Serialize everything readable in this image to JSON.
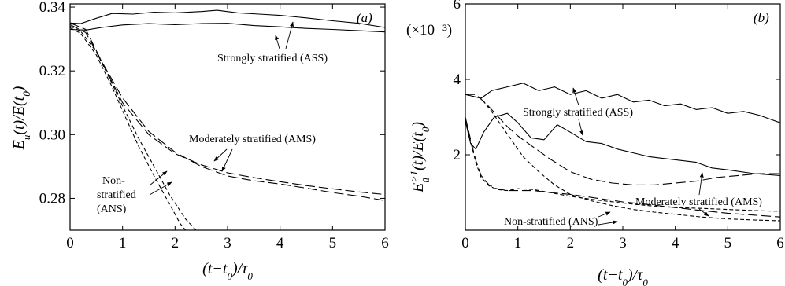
{
  "chart_data": [
    {
      "type": "line",
      "panel_label": "(a)",
      "xlabel": "(t−t₀)/τ₀",
      "ylabel": "E_ū(t)/E(t₀)",
      "xlim": [
        0,
        6
      ],
      "ylim": [
        0.27,
        0.341
      ],
      "x_ticks": [
        "0",
        "1",
        "2",
        "3",
        "4",
        "5",
        "6"
      ],
      "y_ticks": [
        "0.28",
        "0.30",
        "0.32",
        "0.34"
      ],
      "x_tick_values": [
        0,
        1,
        2,
        3,
        4,
        5,
        6
      ],
      "y_tick_values": [
        0.28,
        0.3,
        0.32,
        0.34
      ],
      "series": [
        {
          "group": "ASS",
          "style": "solid",
          "x": [
            0,
            0.2,
            0.5,
            0.8,
            1.2,
            1.6,
            2.0,
            2.5,
            2.8,
            3.2,
            3.6,
            4.0,
            4.5,
            5.0,
            5.5,
            6.0
          ],
          "y": [
            0.335,
            0.3348,
            0.3365,
            0.338,
            0.3378,
            0.3384,
            0.3382,
            0.3386,
            0.339,
            0.3382,
            0.3378,
            0.3374,
            0.3366,
            0.3357,
            0.3349,
            0.3336
          ]
        },
        {
          "group": "ASS",
          "style": "solid",
          "x": [
            0,
            0.3,
            0.6,
            1.0,
            1.5,
            2.0,
            2.5,
            3.0,
            3.5,
            4.0,
            4.5,
            5.0,
            5.5,
            6.0
          ],
          "y": [
            0.333,
            0.3328,
            0.3336,
            0.3344,
            0.3348,
            0.3345,
            0.3348,
            0.3349,
            0.3342,
            0.3338,
            0.3333,
            0.333,
            0.3326,
            0.3322
          ]
        },
        {
          "group": "AMS",
          "style": "longdash",
          "x": [
            0,
            0.3,
            0.6,
            1.0,
            1.5,
            2.0,
            2.5,
            3.0,
            3.5,
            4.0,
            4.5,
            5.0,
            5.5,
            6.0
          ],
          "y": [
            0.335,
            0.333,
            0.323,
            0.31,
            0.3,
            0.294,
            0.2905,
            0.288,
            0.2865,
            0.2852,
            0.284,
            0.283,
            0.282,
            0.2812
          ]
        },
        {
          "group": "AMS",
          "style": "longdash",
          "x": [
            0,
            0.3,
            0.6,
            1.0,
            1.5,
            2.0,
            2.5,
            3.0,
            3.5,
            4.0,
            4.5,
            5.0,
            5.5,
            6.0
          ],
          "y": [
            0.3345,
            0.332,
            0.323,
            0.3115,
            0.301,
            0.2945,
            0.29,
            0.287,
            0.2855,
            0.2845,
            0.2832,
            0.2818,
            0.2807,
            0.2793
          ]
        },
        {
          "group": "ANS",
          "style": "shortdash",
          "x": [
            0,
            0.2,
            0.5,
            0.8,
            1.0,
            1.3,
            1.6,
            1.9,
            2.2,
            2.4,
            2.55
          ],
          "y": [
            0.334,
            0.3325,
            0.326,
            0.316,
            0.309,
            0.299,
            0.29,
            0.281,
            0.2735,
            0.27,
            0.268
          ]
        },
        {
          "group": "ANS",
          "style": "shortdash",
          "x": [
            0,
            0.2,
            0.5,
            0.8,
            1.0,
            1.3,
            1.6,
            1.9,
            2.1,
            2.3
          ],
          "y": [
            0.3335,
            0.3318,
            0.325,
            0.315,
            0.3075,
            0.2965,
            0.287,
            0.278,
            0.272,
            0.268
          ]
        }
      ],
      "annotations": [
        {
          "text": "Strongly stratified (ASS)"
        },
        {
          "text": "Moderately stratified (AMS)"
        },
        {
          "text": "Non-"
        },
        {
          "text": "stratified"
        },
        {
          "text": "(ANS)"
        }
      ]
    },
    {
      "type": "line",
      "panel_label": "(b)",
      "xlabel": "(t−t₀)/τ₀",
      "ylabel": "E_ū^{>1}(t)/E(t₀)",
      "y_multiplier": "(×10⁻³)",
      "xlim": [
        0,
        6
      ],
      "ylim": [
        0,
        6
      ],
      "x_ticks": [
        "0",
        "1",
        "2",
        "3",
        "4",
        "5",
        "6"
      ],
      "y_ticks": [
        "2",
        "4",
        "6"
      ],
      "x_tick_values": [
        0,
        1,
        2,
        3,
        4,
        5,
        6
      ],
      "y_tick_values": [
        2,
        4,
        6
      ],
      "series": [
        {
          "group": "ASS",
          "style": "solid",
          "x": [
            0,
            0.15,
            0.3,
            0.5,
            0.8,
            1.1,
            1.4,
            1.7,
            2.0,
            2.3,
            2.6,
            2.9,
            3.2,
            3.5,
            3.8,
            4.1,
            4.4,
            4.7,
            5.0,
            5.3,
            5.6,
            6.0
          ],
          "y": [
            3.6,
            3.55,
            3.5,
            3.7,
            3.8,
            3.9,
            3.7,
            3.8,
            3.6,
            3.7,
            3.5,
            3.6,
            3.4,
            3.45,
            3.3,
            3.35,
            3.2,
            3.25,
            3.1,
            3.15,
            3.05,
            2.85
          ]
        },
        {
          "group": "ASS",
          "style": "solid",
          "x": [
            0,
            0.1,
            0.2,
            0.35,
            0.55,
            0.8,
            1.0,
            1.25,
            1.5,
            1.75,
            2.0,
            2.3,
            2.6,
            2.9,
            3.2,
            3.5,
            3.8,
            4.1,
            4.4,
            4.7,
            5.0,
            5.5,
            6.0
          ],
          "y": [
            2.9,
            2.3,
            2.15,
            2.6,
            3.0,
            3.1,
            2.85,
            2.45,
            2.4,
            2.8,
            2.6,
            2.35,
            2.3,
            2.15,
            2.05,
            1.95,
            1.9,
            1.85,
            1.8,
            1.65,
            1.6,
            1.5,
            1.45
          ]
        },
        {
          "group": "AMS",
          "style": "longdash",
          "x": [
            0,
            0.2,
            0.4,
            0.6,
            0.8,
            1.0,
            1.3,
            1.6,
            2.0,
            2.4,
            2.8,
            3.2,
            3.6,
            4.0,
            4.4,
            4.8,
            5.2,
            5.6,
            6.0
          ],
          "y": [
            3.6,
            3.6,
            3.35,
            3.05,
            2.75,
            2.5,
            2.2,
            1.9,
            1.55,
            1.35,
            1.25,
            1.2,
            1.2,
            1.25,
            1.3,
            1.4,
            1.45,
            1.5,
            1.5
          ]
        },
        {
          "group": "AMS",
          "style": "longdash",
          "x": [
            0,
            0.1,
            0.2,
            0.3,
            0.45,
            0.6,
            0.8,
            1.0,
            1.3,
            1.6,
            2.0,
            2.5,
            3.0,
            3.5,
            4.0,
            4.5,
            5.0,
            5.5,
            6.0
          ],
          "y": [
            3.0,
            2.4,
            1.85,
            1.45,
            1.2,
            1.1,
            1.05,
            1.05,
            1.05,
            1.0,
            0.95,
            0.85,
            0.75,
            0.68,
            0.6,
            0.52,
            0.45,
            0.4,
            0.35
          ]
        },
        {
          "group": "ANS",
          "style": "shortdash",
          "x": [
            0,
            0.3,
            0.5,
            0.7,
            0.9,
            1.1,
            1.4,
            1.7,
            2.0,
            2.4,
            2.8,
            3.2,
            3.6,
            4.0,
            4.5,
            5.0,
            5.5,
            6.0
          ],
          "y": [
            3.6,
            3.5,
            3.15,
            2.75,
            2.35,
            1.95,
            1.55,
            1.2,
            0.95,
            0.78,
            0.65,
            0.55,
            0.48,
            0.42,
            0.35,
            0.3,
            0.27,
            0.25
          ]
        },
        {
          "group": "ANS",
          "style": "shortdash",
          "x": [
            0,
            0.1,
            0.2,
            0.3,
            0.45,
            0.6,
            0.8,
            1.0,
            1.3,
            1.6,
            2.0,
            2.5,
            3.0,
            3.5,
            4.0,
            4.5,
            5.0,
            5.5,
            6.0
          ],
          "y": [
            2.95,
            2.35,
            1.8,
            1.4,
            1.18,
            1.08,
            1.05,
            1.1,
            1.08,
            1.0,
            0.9,
            0.8,
            0.72,
            0.65,
            0.6,
            0.58,
            0.55,
            0.52,
            0.5
          ]
        }
      ],
      "annotations": [
        {
          "text": "Strongly stratified (ASS)"
        },
        {
          "text": "Moderately stratified (AMS)"
        },
        {
          "text": "Non-stratified (ANS)"
        }
      ]
    }
  ]
}
